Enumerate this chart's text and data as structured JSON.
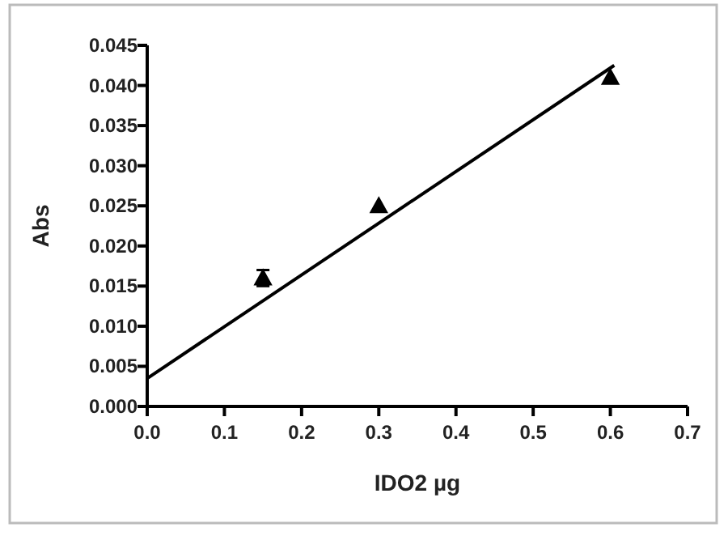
{
  "chart_data": {
    "type": "scatter",
    "xlabel": "IDO2 µg",
    "ylabel": "Abs",
    "xlim": [
      0,
      0.7
    ],
    "xticks": [
      {
        "value": 0,
        "label": "0.0"
      },
      0.1,
      0.2,
      0.3,
      0.4,
      0.5,
      0.6,
      0.7
    ],
    "ylim": [
      0,
      0.045
    ],
    "yticks": [
      {
        "value": 0,
        "label": "0.000"
      },
      {
        "value": 0.005,
        "label": "0.005"
      },
      {
        "value": 0.01,
        "label": "0.010"
      },
      {
        "value": 0.015,
        "label": "0.015"
      },
      {
        "value": 0.02,
        "label": "0.020"
      },
      {
        "value": 0.025,
        "label": "0.025"
      },
      {
        "value": 0.03,
        "label": "0.030"
      },
      {
        "value": 0.035,
        "label": "0.035"
      },
      {
        "value": 0.04,
        "label": "0.040"
      },
      {
        "value": 0.045,
        "label": "0.045"
      }
    ],
    "series": [
      {
        "marker": "triangle",
        "color": "#000000",
        "x": [
          0.15,
          0.3,
          0.6
        ],
        "values": [
          0.016,
          0.025,
          0.041
        ],
        "errors": [
          0.001,
          null,
          null
        ]
      },
      {
        "type": "line",
        "color": "#000000",
        "x": [
          0,
          0.605
        ],
        "values": [
          0.0035,
          0.0425
        ]
      }
    ]
  }
}
